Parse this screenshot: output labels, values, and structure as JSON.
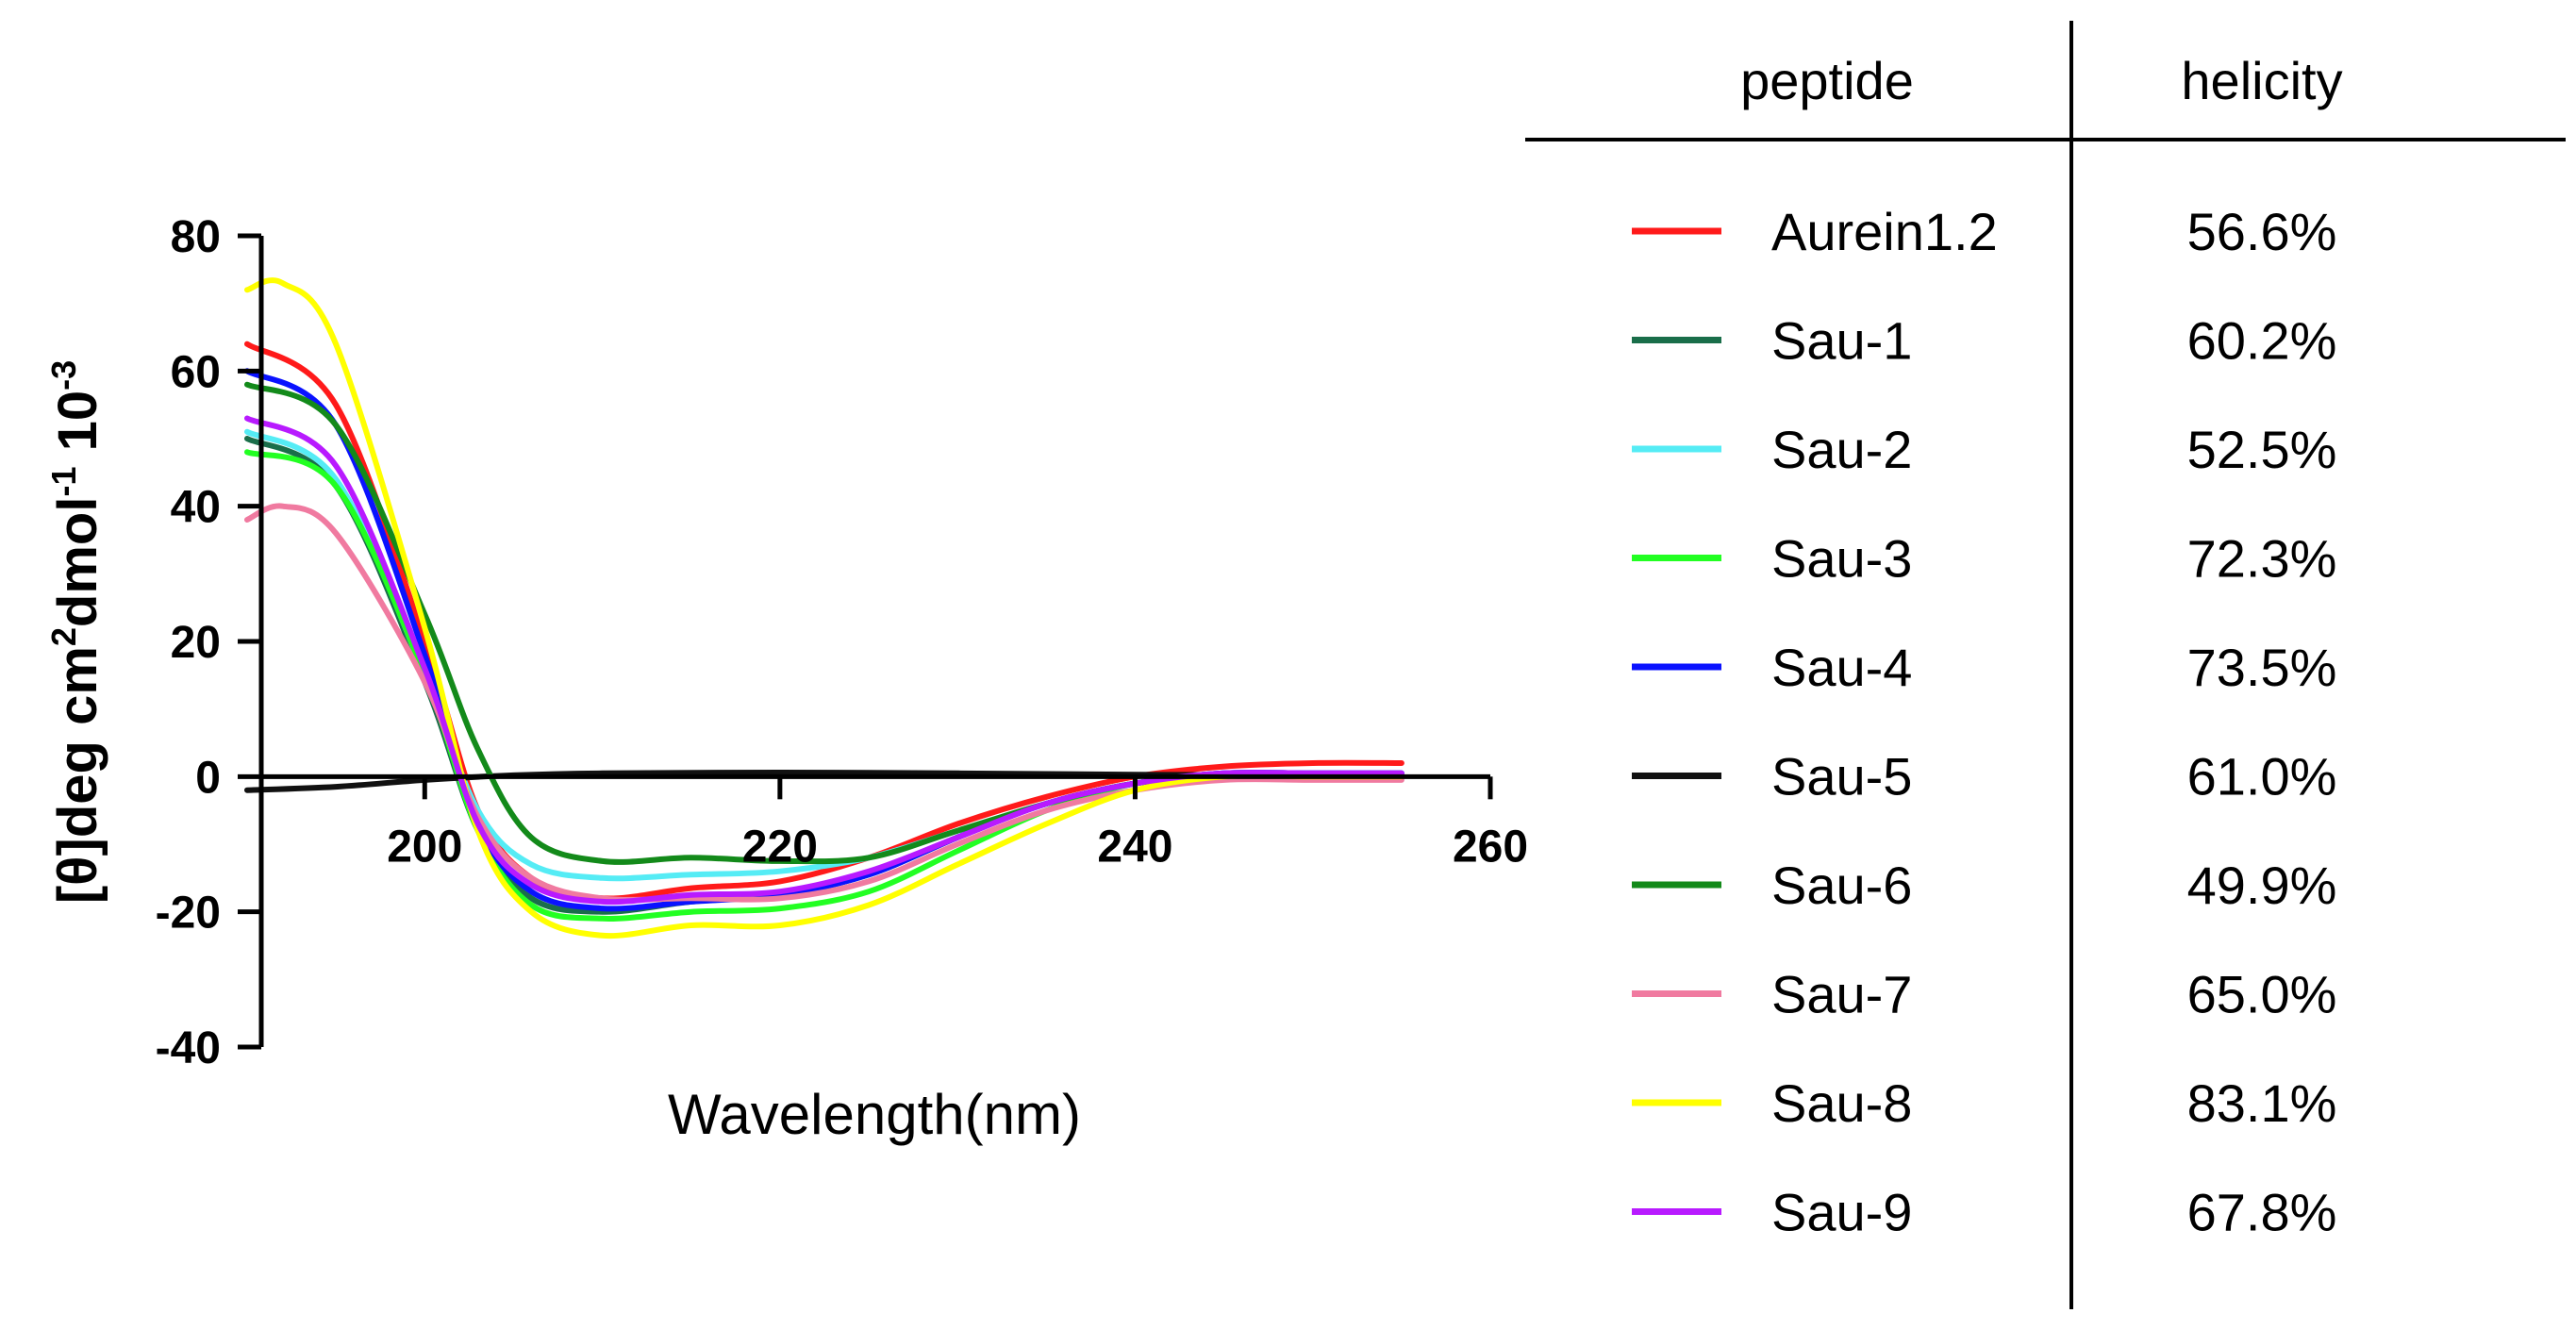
{
  "chart_data": {
    "type": "line",
    "xlabel": "Wavelength(nm)",
    "ylabel": {
      "part1": "[θ]deg cm",
      "sup1": "2",
      "part2": "dmol",
      "sup2": "-1",
      "part3": " 10",
      "sup3": "-3"
    },
    "xlim": [
      190,
      260
    ],
    "ylim": [
      -40,
      80
    ],
    "xticks": [
      200,
      220,
      240,
      260
    ],
    "yticks": [
      -40,
      -20,
      0,
      20,
      40,
      60,
      80
    ],
    "series": [
      {
        "name": "Aurein1.2",
        "color": "#ff1a1a",
        "x": [
          190,
          195,
          200,
          203,
          206,
          210,
          215,
          220,
          225,
          230,
          235,
          240,
          245,
          250,
          255
        ],
        "y": [
          64,
          55,
          20,
          -5,
          -15,
          -18,
          -16.5,
          -15.5,
          -12,
          -7,
          -3,
          0,
          1.5,
          2,
          2
        ]
      },
      {
        "name": "Sau-1",
        "color": "#1a6e4a",
        "x": [
          190,
          195,
          200,
          203,
          206,
          210,
          215,
          220,
          225,
          230,
          235,
          240,
          245,
          250,
          255
        ],
        "y": [
          50,
          43,
          14,
          -8,
          -18,
          -20,
          -18.5,
          -17.5,
          -14.5,
          -9,
          -4,
          -1,
          0.5,
          0.5,
          0.5
        ]
      },
      {
        "name": "Sau-2",
        "color": "#55ecf5",
        "x": [
          190,
          195,
          200,
          203,
          206,
          210,
          215,
          220,
          225,
          230,
          235,
          240,
          245,
          250,
          255
        ],
        "y": [
          51,
          44,
          15,
          -5,
          -13,
          -15,
          -14.5,
          -14,
          -12,
          -8,
          -4,
          -1,
          0.5,
          0.5,
          0.5
        ]
      },
      {
        "name": "Sau-3",
        "color": "#22ff22",
        "x": [
          190,
          195,
          200,
          203,
          206,
          210,
          215,
          220,
          225,
          230,
          235,
          240,
          245,
          250,
          255
        ],
        "y": [
          48,
          43,
          15,
          -8,
          -19,
          -21,
          -20,
          -19.5,
          -17,
          -11,
          -5,
          -1,
          0,
          0,
          0
        ]
      },
      {
        "name": "Sau-4",
        "color": "#0a12ff",
        "x": [
          190,
          195,
          200,
          203,
          206,
          210,
          215,
          220,
          225,
          230,
          235,
          240,
          245,
          250,
          255
        ],
        "y": [
          60,
          52,
          18,
          -7,
          -17,
          -19.5,
          -18.5,
          -17.5,
          -14.5,
          -9,
          -4,
          -1,
          0.5,
          0.5,
          0.5
        ]
      },
      {
        "name": "Sau-5",
        "color": "#111111",
        "x": [
          190,
          195,
          200,
          205,
          210,
          220,
          230,
          240,
          250,
          255
        ],
        "y": [
          -2,
          -1.5,
          -0.5,
          0.2,
          0.5,
          0.6,
          0.5,
          0.3,
          0.2,
          0.2
        ]
      },
      {
        "name": "Sau-6",
        "color": "#138a1a",
        "x": [
          190,
          195,
          200,
          203,
          206,
          210,
          215,
          220,
          225,
          230,
          235,
          240,
          245,
          250,
          255
        ],
        "y": [
          58,
          52,
          24,
          4,
          -9,
          -12.5,
          -12,
          -12.5,
          -12,
          -8,
          -4,
          -1,
          0,
          0,
          0
        ]
      },
      {
        "name": "Sau-7",
        "color": "#f07aa0",
        "x": [
          190,
          192,
          195,
          200,
          203,
          206,
          210,
          215,
          220,
          225,
          230,
          235,
          240,
          245,
          250,
          255
        ],
        "y": [
          38,
          40,
          36,
          14,
          -6,
          -15,
          -18,
          -18,
          -18,
          -15.5,
          -10,
          -5,
          -2,
          -0.5,
          -0.5,
          -0.5
        ]
      },
      {
        "name": "Sau-8",
        "color": "#ffff00",
        "x": [
          190,
          192,
          195,
          200,
          203,
          206,
          210,
          215,
          220,
          225,
          230,
          235,
          240,
          245,
          250,
          255
        ],
        "y": [
          72,
          73,
          64,
          22,
          -8,
          -20,
          -23.5,
          -22,
          -22,
          -19,
          -13,
          -7,
          -2,
          0,
          0,
          0
        ]
      },
      {
        "name": "Sau-9",
        "color": "#b81aff",
        "x": [
          190,
          195,
          200,
          203,
          206,
          210,
          215,
          220,
          225,
          230,
          235,
          240,
          245,
          250,
          255
        ],
        "y": [
          53,
          46,
          16,
          -7,
          -16,
          -18.5,
          -17.5,
          -17,
          -14,
          -9,
          -4,
          -1,
          0.5,
          0.5,
          0.5
        ]
      }
    ]
  },
  "table": {
    "headers": [
      "peptide",
      "helicity"
    ],
    "rows": [
      {
        "peptide": "Aurein1.2",
        "helicity": "56.6%",
        "color": "#ff1a1a"
      },
      {
        "peptide": "Sau-1",
        "helicity": "60.2%",
        "color": "#1a6e4a"
      },
      {
        "peptide": "Sau-2",
        "helicity": "52.5%",
        "color": "#55ecf5"
      },
      {
        "peptide": "Sau-3",
        "helicity": "72.3%",
        "color": "#22ff22"
      },
      {
        "peptide": "Sau-4",
        "helicity": "73.5%",
        "color": "#0a12ff"
      },
      {
        "peptide": "Sau-5",
        "helicity": "61.0%",
        "color": "#111111"
      },
      {
        "peptide": "Sau-6",
        "helicity": "49.9%",
        "color": "#138a1a"
      },
      {
        "peptide": "Sau-7",
        "helicity": "65.0%",
        "color": "#f07aa0"
      },
      {
        "peptide": "Sau-8",
        "helicity": "83.1%",
        "color": "#ffff00"
      },
      {
        "peptide": "Sau-9",
        "helicity": "67.8%",
        "color": "#b81aff"
      }
    ]
  }
}
